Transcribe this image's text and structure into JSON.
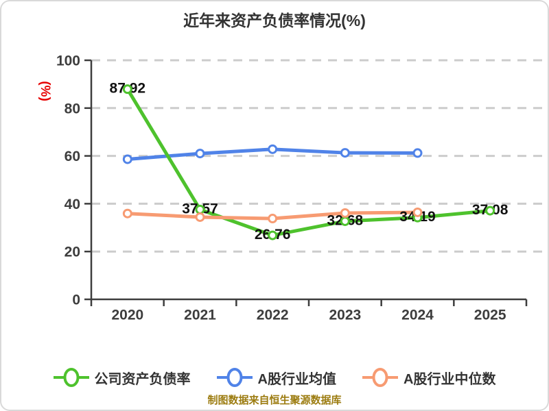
{
  "title": "近年来资产负债率情况(%)",
  "y_axis_unit": "(%)",
  "data_source_note": "制图数据来自恒生聚源数据库",
  "colors": {
    "company_ratio": "#4ec22d",
    "industry_avg": "#5083e8",
    "industry_median": "#f79b72",
    "grid": "#cccccc",
    "axis": "#3d3d3d",
    "tick_label": "#3d3d3d",
    "value_label": "#111111",
    "title": "#333333",
    "unit": "#e60000",
    "footer": "#9c7c10"
  },
  "legend": [
    {
      "key": "company-ratio",
      "label": "公司资产负债率",
      "color": "#4ec22d"
    },
    {
      "key": "industry-avg",
      "label": "A股行业均值",
      "color": "#5083e8"
    },
    {
      "key": "industry-median",
      "label": "A股行业中位数",
      "color": "#f79b72"
    }
  ],
  "chart_data": {
    "type": "line",
    "categories": [
      "2020",
      "2021",
      "2022",
      "2023",
      "2024",
      "2025"
    ],
    "series": [
      {
        "name": "公司资产负债率",
        "key": "company-ratio",
        "color": "#4ec22d",
        "values": [
          87.92,
          37.57,
          26.76,
          32.68,
          34.19,
          37.08
        ],
        "labeled": true
      },
      {
        "name": "A股行业均值",
        "key": "industry-avg",
        "color": "#5083e8",
        "values": [
          58.6,
          61.0,
          62.8,
          61.3,
          61.2,
          null
        ],
        "labeled": false
      },
      {
        "name": "A股行业中位数",
        "key": "industry-median",
        "color": "#f79b72",
        "values": [
          35.9,
          34.4,
          33.8,
          36.1,
          36.4,
          null
        ],
        "labeled": false
      }
    ],
    "value_labels": [
      "87.92",
      "37.57",
      "26.76",
      "32.68",
      "34.19",
      "37.08"
    ],
    "xlabel": "",
    "ylabel": "(%)",
    "ylim": [
      0,
      100
    ],
    "yticks": [
      0,
      20,
      40,
      60,
      80,
      100
    ],
    "grid": "horizontal-dashed",
    "legend_position": "bottom"
  }
}
